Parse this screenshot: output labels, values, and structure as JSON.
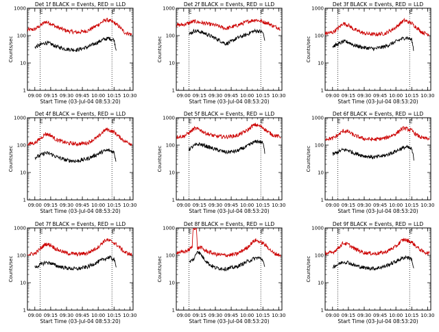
{
  "chart_data": [
    {
      "type": "line",
      "title": "Det 1f BLACK = Events, RED = LLD",
      "xlabel": "Start Time (03-Jul-04 08:53:20)",
      "ylabel": "Counts/sec",
      "xlim": [
        "08:53",
        "10:33"
      ],
      "ylim": [
        1,
        1000
      ],
      "yscale": "log",
      "x_tick_labels": [
        "09:00",
        "09:15",
        "09:30",
        "09:45",
        "10:00",
        "10:15",
        "10:30"
      ],
      "y_tick_labels": [
        "1",
        "10",
        "100",
        "1000"
      ],
      "markers": [
        {
          "label": "E",
          "x": "09:05"
        },
        {
          "label": "E",
          "x": "10:13"
        }
      ],
      "series": [
        {
          "color": "#cc0000",
          "x": [
            "08:53",
            "09:00",
            "09:05",
            "09:10",
            "09:15",
            "09:20",
            "09:30",
            "09:40",
            "09:50",
            "10:00",
            "10:05",
            "10:08",
            "10:15",
            "10:20",
            "10:25",
            "10:32"
          ],
          "values": [
            160,
            170,
            230,
            320,
            280,
            210,
            150,
            130,
            150,
            250,
            340,
            380,
            300,
            210,
            130,
            110
          ]
        },
        {
          "series_color": "black",
          "color": "#000000",
          "x": [
            "09:00",
            "09:05",
            "09:10",
            "09:15",
            "09:20",
            "09:30",
            "09:40",
            "09:50",
            "10:00",
            "10:05",
            "10:10",
            "10:15",
            "10:17"
          ],
          "values": [
            38,
            45,
            55,
            50,
            40,
            32,
            30,
            38,
            58,
            72,
            80,
            70,
            30
          ]
        }
      ]
    },
    {
      "type": "line",
      "title": "Det 2f BLACK = Events, RED = LLD",
      "xlabel": "Start Time (03-Jul-04 08:53:20)",
      "ylabel": "Counts/sec",
      "xlim": [
        "08:53",
        "10:33"
      ],
      "ylim": [
        1,
        1000
      ],
      "yscale": "log",
      "x_tick_labels": [
        "09:00",
        "09:15",
        "09:30",
        "09:45",
        "10:00",
        "10:15",
        "10:30"
      ],
      "y_tick_labels": [
        "1",
        "10",
        "100",
        "1000"
      ],
      "markers": [
        {
          "label": "E",
          "x": "09:05"
        },
        {
          "label": "E",
          "x": "10:13"
        }
      ],
      "series": [
        {
          "color": "#cc0000",
          "x": [
            "08:53",
            "09:00",
            "09:10",
            "09:20",
            "09:30",
            "09:40",
            "09:50",
            "10:00",
            "10:08",
            "10:15",
            "10:20",
            "10:25",
            "10:32"
          ],
          "values": [
            240,
            250,
            330,
            280,
            240,
            180,
            230,
            320,
            380,
            320,
            280,
            220,
            180
          ]
        },
        {
          "color": "#000000",
          "x": [
            "09:05",
            "09:10",
            "09:15",
            "09:20",
            "09:30",
            "09:40",
            "09:45",
            "09:50",
            "10:00",
            "10:05",
            "10:10",
            "10:15",
            "10:17"
          ],
          "values": [
            110,
            150,
            140,
            120,
            80,
            50,
            60,
            80,
            110,
            140,
            150,
            130,
            60
          ]
        }
      ]
    },
    {
      "type": "line",
      "title": "Det 3f BLACK = Events, RED = LLD",
      "xlabel": "Start Time (03-Jul-04 08:53:20)",
      "ylabel": "Counts/sec",
      "xlim": [
        "08:53",
        "10:33"
      ],
      "ylim": [
        1,
        1000
      ],
      "yscale": "log",
      "x_tick_labels": [
        "09:00",
        "09:15",
        "09:30",
        "09:45",
        "10:00",
        "10:15",
        "10:30"
      ],
      "y_tick_labels": [
        "1",
        "10",
        "100",
        "1000"
      ],
      "markers": [
        {
          "label": "E",
          "x": "09:05"
        },
        {
          "label": "E",
          "x": "10:13"
        }
      ],
      "series": [
        {
          "color": "#cc0000",
          "x": [
            "08:53",
            "09:00",
            "09:05",
            "09:10",
            "09:15",
            "09:20",
            "09:30",
            "09:40",
            "09:50",
            "10:00",
            "10:05",
            "10:08",
            "10:15",
            "10:20",
            "10:25",
            "10:32"
          ],
          "values": [
            120,
            130,
            180,
            280,
            240,
            170,
            120,
            110,
            120,
            200,
            300,
            360,
            280,
            190,
            130,
            110
          ]
        },
        {
          "color": "#000000",
          "x": [
            "09:00",
            "09:05",
            "09:10",
            "09:15",
            "09:20",
            "09:30",
            "09:40",
            "09:50",
            "10:00",
            "10:05",
            "10:10",
            "10:15",
            "10:17"
          ],
          "values": [
            40,
            48,
            60,
            58,
            45,
            36,
            33,
            40,
            60,
            75,
            85,
            70,
            28
          ]
        }
      ]
    },
    {
      "type": "line",
      "title": "Det 4f BLACK = Events, RED = LLD",
      "xlabel": "Start Time (03-Jul-04 08:53:20)",
      "ylabel": "Counts/sec",
      "xlim": [
        "08:53",
        "10:33"
      ],
      "ylim": [
        1,
        1000
      ],
      "yscale": "log",
      "x_tick_labels": [
        "09:00",
        "09:15",
        "09:30",
        "09:45",
        "10:00",
        "10:15",
        "10:30"
      ],
      "y_tick_labels": [
        "1",
        "10",
        "100",
        "1000"
      ],
      "markers": [
        {
          "label": "E",
          "x": "09:05"
        },
        {
          "label": "E",
          "x": "10:13"
        }
      ],
      "series": [
        {
          "color": "#cc0000",
          "x": [
            "08:53",
            "09:00",
            "09:05",
            "09:10",
            "09:15",
            "09:20",
            "09:30",
            "09:40",
            "09:50",
            "10:00",
            "10:05",
            "10:08",
            "10:15",
            "10:20",
            "10:25",
            "10:32"
          ],
          "values": [
            110,
            120,
            170,
            260,
            230,
            160,
            120,
            110,
            120,
            200,
            320,
            380,
            300,
            200,
            140,
            110
          ]
        },
        {
          "color": "#000000",
          "x": [
            "09:00",
            "09:05",
            "09:10",
            "09:15",
            "09:20",
            "09:30",
            "09:40",
            "09:50",
            "10:00",
            "10:05",
            "10:10",
            "10:15",
            "10:17"
          ],
          "values": [
            35,
            42,
            52,
            48,
            38,
            28,
            26,
            32,
            48,
            60,
            65,
            55,
            25
          ]
        }
      ]
    },
    {
      "type": "line",
      "title": "Det 5f BLACK = Events, RED = LLD",
      "xlabel": "Start Time (03-Jul-04 08:53:20)",
      "ylabel": "Counts/sec",
      "xlim": [
        "08:53",
        "10:33"
      ],
      "ylim": [
        1,
        1000
      ],
      "yscale": "log",
      "x_tick_labels": [
        "09:00",
        "09:15",
        "09:30",
        "09:45",
        "10:00",
        "10:15",
        "10:30"
      ],
      "y_tick_labels": [
        "1",
        "10",
        "100",
        "1000"
      ],
      "markers": [
        {
          "label": "E",
          "x": "09:05"
        },
        {
          "label": "E",
          "x": "10:13"
        }
      ],
      "series": [
        {
          "color": "#cc0000",
          "x": [
            "08:53",
            "09:00",
            "09:05",
            "09:10",
            "09:15",
            "09:20",
            "09:30",
            "09:40",
            "09:50",
            "10:00",
            "10:05",
            "10:08",
            "10:15",
            "10:20",
            "10:25",
            "10:32"
          ],
          "values": [
            200,
            210,
            280,
            400,
            380,
            280,
            210,
            200,
            220,
            340,
            500,
            560,
            440,
            300,
            230,
            200
          ]
        },
        {
          "color": "#000000",
          "x": [
            "09:05",
            "09:10",
            "09:15",
            "09:20",
            "09:30",
            "09:40",
            "09:50",
            "10:00",
            "10:05",
            "10:10",
            "10:15",
            "10:17"
          ],
          "values": [
            70,
            95,
            110,
            95,
            70,
            55,
            60,
            90,
            120,
            140,
            120,
            50
          ]
        }
      ]
    },
    {
      "type": "line",
      "title": "Det 6f BLACK = Events, RED = LLD",
      "xlabel": "Start Time (03-Jul-04 08:53:20)",
      "ylabel": "Counts/sec",
      "xlim": [
        "08:53",
        "10:33"
      ],
      "ylim": [
        1,
        1000
      ],
      "yscale": "log",
      "x_tick_labels": [
        "09:00",
        "09:15",
        "09:30",
        "09:45",
        "10:00",
        "10:15",
        "10:30"
      ],
      "y_tick_labels": [
        "1",
        "10",
        "100",
        "1000"
      ],
      "markers": [
        {
          "label": "E",
          "x": "09:05"
        },
        {
          "label": "E",
          "x": "10:13"
        }
      ],
      "series": [
        {
          "color": "#cc0000",
          "x": [
            "08:53",
            "09:00",
            "09:05",
            "09:10",
            "09:15",
            "09:20",
            "09:30",
            "09:40",
            "09:50",
            "10:00",
            "10:05",
            "10:08",
            "10:15",
            "10:20",
            "10:25",
            "10:32"
          ],
          "values": [
            170,
            175,
            230,
            330,
            310,
            230,
            170,
            160,
            180,
            260,
            380,
            420,
            340,
            230,
            180,
            170
          ]
        },
        {
          "color": "#000000",
          "x": [
            "09:00",
            "09:05",
            "09:10",
            "09:15",
            "09:20",
            "09:30",
            "09:40",
            "09:50",
            "10:00",
            "10:05",
            "10:10",
            "10:15",
            "10:17"
          ],
          "values": [
            45,
            55,
            68,
            65,
            52,
            40,
            36,
            42,
            60,
            75,
            85,
            70,
            32
          ]
        }
      ]
    },
    {
      "type": "line",
      "title": "Det 7f BLACK = Events, RED = LLD",
      "xlabel": "Start Time (03-Jul-04 08:53:20)",
      "ylabel": "Counts/sec",
      "xlim": [
        "08:53",
        "10:33"
      ],
      "ylim": [
        1,
        1000
      ],
      "yscale": "log",
      "x_tick_labels": [
        "09:00",
        "09:15",
        "09:30",
        "09:45",
        "10:00",
        "10:15",
        "10:30"
      ],
      "y_tick_labels": [
        "1",
        "10",
        "100",
        "1000"
      ],
      "markers": [
        {
          "label": "E",
          "x": "09:05"
        },
        {
          "label": "E",
          "x": "10:13"
        }
      ],
      "series": [
        {
          "color": "#cc0000",
          "x": [
            "08:53",
            "09:00",
            "09:05",
            "09:10",
            "09:15",
            "09:20",
            "09:30",
            "09:40",
            "09:50",
            "10:00",
            "10:05",
            "10:08",
            "10:15",
            "10:20",
            "10:25",
            "10:32"
          ],
          "values": [
            110,
            115,
            170,
            260,
            240,
            170,
            120,
            110,
            120,
            200,
            320,
            370,
            290,
            200,
            130,
            105
          ]
        },
        {
          "color": "#000000",
          "x": [
            "09:00",
            "09:05",
            "09:10",
            "09:15",
            "09:20",
            "09:30",
            "09:40",
            "09:50",
            "10:00",
            "10:05",
            "10:10",
            "10:15",
            "10:17"
          ],
          "values": [
            36,
            45,
            55,
            52,
            42,
            34,
            32,
            38,
            58,
            72,
            85,
            72,
            35
          ]
        }
      ]
    },
    {
      "type": "line",
      "title": "Det 8f BLACK = Events, RED = LLD",
      "xlabel": "Start Time (03-Jul-04 08:53:20)",
      "ylabel": "Counts/sec",
      "xlim": [
        "08:53",
        "10:33"
      ],
      "ylim": [
        1,
        1000
      ],
      "yscale": "log",
      "x_tick_labels": [
        "09:00",
        "09:15",
        "09:30",
        "09:45",
        "10:00",
        "10:15",
        "10:30"
      ],
      "y_tick_labels": [
        "1",
        "10",
        "100",
        "1000"
      ],
      "markers": [
        {
          "label": "E",
          "x": "09:05"
        },
        {
          "label": "E",
          "x": "10:13"
        }
      ],
      "series": [
        {
          "color": "#cc0000",
          "x": [
            "08:53",
            "09:00",
            "09:05",
            "09:08",
            "09:09",
            "09:12",
            "09:13",
            "09:16",
            "09:20",
            "09:30",
            "09:40",
            "09:50",
            "10:00",
            "10:05",
            "10:08",
            "10:15",
            "10:20",
            "10:25",
            "10:32"
          ],
          "values": [
            130,
            130,
            160,
            200,
            1000,
            1000,
            180,
            200,
            150,
            110,
            100,
            110,
            190,
            300,
            360,
            280,
            190,
            120,
            100
          ]
        },
        {
          "color": "#000000",
          "x": [
            "09:05",
            "09:10",
            "09:13",
            "09:16",
            "09:20",
            "09:25",
            "09:30",
            "09:40",
            "09:50",
            "10:00",
            "10:05",
            "10:10",
            "10:15",
            "10:17"
          ],
          "values": [
            55,
            75,
            150,
            110,
            70,
            45,
            35,
            32,
            38,
            58,
            72,
            82,
            70,
            30
          ]
        }
      ]
    },
    {
      "type": "line",
      "title": "Det 9f BLACK = Events, RED = LLD",
      "xlabel": "Start Time (03-Jul-04 08:53:20)",
      "ylabel": "Counts/sec",
      "xlim": [
        "08:53",
        "10:33"
      ],
      "ylim": [
        1,
        1000
      ],
      "yscale": "log",
      "x_tick_labels": [
        "09:00",
        "09:15",
        "09:30",
        "09:45",
        "10:00",
        "10:15",
        "10:30"
      ],
      "y_tick_labels": [
        "1",
        "10",
        "100",
        "1000"
      ],
      "markers": [
        {
          "label": "E",
          "x": "09:05"
        },
        {
          "label": "E",
          "x": "10:13"
        }
      ],
      "series": [
        {
          "color": "#cc0000",
          "x": [
            "08:53",
            "09:00",
            "09:05",
            "09:10",
            "09:15",
            "09:20",
            "09:30",
            "09:40",
            "09:50",
            "10:00",
            "10:05",
            "10:08",
            "10:15",
            "10:20",
            "10:25",
            "10:32"
          ],
          "values": [
            120,
            125,
            180,
            280,
            250,
            180,
            125,
            115,
            130,
            210,
            330,
            380,
            300,
            200,
            140,
            115
          ]
        },
        {
          "color": "#000000",
          "x": [
            "09:00",
            "09:05",
            "09:10",
            "09:15",
            "09:20",
            "09:30",
            "09:40",
            "09:50",
            "10:00",
            "10:05",
            "10:10",
            "10:15",
            "10:17"
          ],
          "values": [
            38,
            46,
            58,
            55,
            44,
            35,
            33,
            40,
            60,
            75,
            88,
            72,
            30
          ]
        }
      ]
    }
  ]
}
